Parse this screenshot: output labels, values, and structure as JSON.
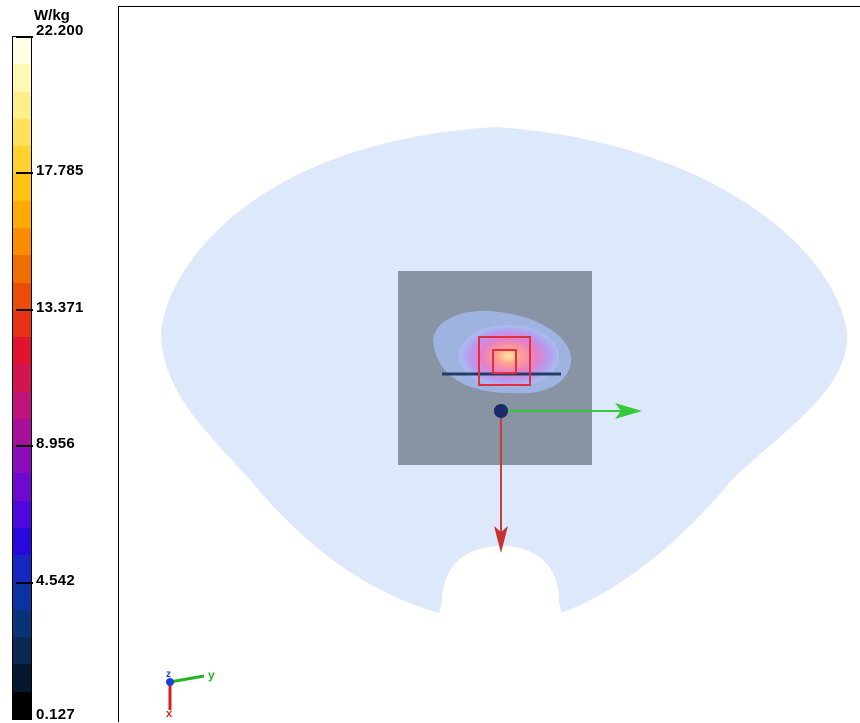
{
  "legend": {
    "unit": "W/kg",
    "ticks": [
      "22.200",
      "17.785",
      "13.371",
      "8.956",
      "4.542",
      "0.127"
    ],
    "scale_colors": [
      "#ffffe6",
      "#fff8b4",
      "#ffee8c",
      "#ffe15a",
      "#ffd22d",
      "#ffc314",
      "#ffaa00",
      "#fa8c00",
      "#f06e00",
      "#ec4c0a",
      "#e63214",
      "#e0142d",
      "#d21450",
      "#c0147a",
      "#a8109c",
      "#8c0cba",
      "#6e0ad0",
      "#4e08dc",
      "#2808dc",
      "#1428c0",
      "#0a32a0",
      "#0a3278",
      "#0a2850",
      "#061830",
      "#000000"
    ]
  },
  "viewport": {
    "phantom_color": "#dde8fa",
    "probe_area_color": "#8893a3",
    "hotspot_box_color": "#e03040"
  },
  "triad": {
    "y_label": "y",
    "x_label": "x",
    "z_label": "z",
    "colors": {
      "x": "#d81e1e",
      "y": "#22b422",
      "z": "#1e3cd8"
    }
  }
}
